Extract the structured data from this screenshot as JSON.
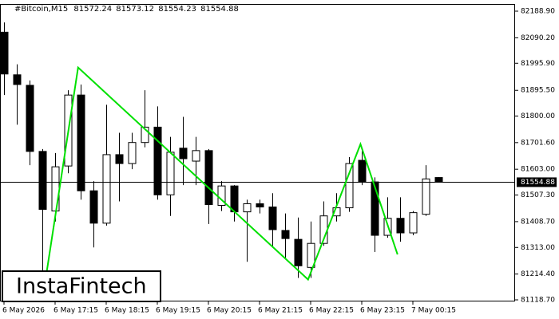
{
  "chart_data": {
    "type": "candlestick",
    "symbol": "#Bitcoin,M15",
    "watermark": "InstaFintech",
    "candles": [
      {
        "open": 82111,
        "high": 82147,
        "low": 81878,
        "close": 81956
      },
      {
        "open": 81953,
        "high": 81992,
        "low": 81768,
        "close": 81917
      },
      {
        "open": 81914,
        "high": 81932,
        "low": 81618,
        "close": 81669
      },
      {
        "open": 81669,
        "high": 81678,
        "low": 81200,
        "close": 81454
      },
      {
        "open": 81448,
        "high": 81663,
        "low": 81409,
        "close": 81612
      },
      {
        "open": 81615,
        "high": 81896,
        "low": 81588,
        "close": 81878
      },
      {
        "open": 81878,
        "high": 81917,
        "low": 81490,
        "close": 81523
      },
      {
        "open": 81523,
        "high": 81559,
        "low": 81313,
        "close": 81403
      },
      {
        "open": 81403,
        "high": 81842,
        "low": 81394,
        "close": 81657
      },
      {
        "open": 81657,
        "high": 81738,
        "low": 81484,
        "close": 81624
      },
      {
        "open": 81624,
        "high": 81738,
        "low": 81603,
        "close": 81702
      },
      {
        "open": 81702,
        "high": 81896,
        "low": 81684,
        "close": 81759
      },
      {
        "open": 81759,
        "high": 81836,
        "low": 81490,
        "close": 81508
      },
      {
        "open": 81508,
        "high": 81723,
        "low": 81430,
        "close": 81666
      },
      {
        "open": 81681,
        "high": 81797,
        "low": 81544,
        "close": 81642
      },
      {
        "open": 81633,
        "high": 81723,
        "low": 81544,
        "close": 81672
      },
      {
        "open": 81672,
        "high": 81678,
        "low": 81400,
        "close": 81472
      },
      {
        "open": 81469,
        "high": 81559,
        "low": 81448,
        "close": 81541
      },
      {
        "open": 81541,
        "high": 81544,
        "low": 81409,
        "close": 81445
      },
      {
        "open": 81445,
        "high": 81490,
        "low": 81260,
        "close": 81475
      },
      {
        "open": 81475,
        "high": 81490,
        "low": 81439,
        "close": 81463
      },
      {
        "open": 81463,
        "high": 81514,
        "low": 81319,
        "close": 81379
      },
      {
        "open": 81376,
        "high": 81439,
        "low": 81275,
        "close": 81346
      },
      {
        "open": 81343,
        "high": 81424,
        "low": 81200,
        "close": 81245
      },
      {
        "open": 81239,
        "high": 81409,
        "low": 81200,
        "close": 81328
      },
      {
        "open": 81328,
        "high": 81484,
        "low": 81319,
        "close": 81430
      },
      {
        "open": 81430,
        "high": 81514,
        "low": 81409,
        "close": 81460
      },
      {
        "open": 81460,
        "high": 81648,
        "low": 81445,
        "close": 81624
      },
      {
        "open": 81636,
        "high": 81678,
        "low": 81544,
        "close": 81556
      },
      {
        "open": 81556,
        "high": 81573,
        "low": 81296,
        "close": 81358
      },
      {
        "open": 81358,
        "high": 81499,
        "low": 81349,
        "close": 81421
      },
      {
        "open": 81421,
        "high": 81499,
        "low": 81334,
        "close": 81367
      },
      {
        "open": 81367,
        "high": 81448,
        "low": 81358,
        "close": 81442
      },
      {
        "open": 81436,
        "high": 81618,
        "low": 81430,
        "close": 81567
      },
      {
        "open": 81572.24,
        "high": 81573.12,
        "low": 81554.23,
        "close": 81554.88
      }
    ],
    "up_color": "#ffffff",
    "down_color": "#000000",
    "current_price": 81554.88,
    "pattern": {
      "color": "#00e000",
      "x": [
        3.3,
        5.8,
        23.8,
        27.9,
        30.8
      ],
      "values": [
        81209,
        81980,
        81194,
        81696,
        81287
      ]
    },
    "xlim": [
      -0.3125,
      40
    ],
    "xticks": [
      {
        "value": 0,
        "label": "6 May 2026"
      },
      {
        "value": 4,
        "label": "6 May 17:15"
      },
      {
        "value": 8,
        "label": "6 May 18:15"
      },
      {
        "value": 12,
        "label": "6 May 19:15"
      },
      {
        "value": 16,
        "label": "6 May 20:15"
      },
      {
        "value": 20,
        "label": "6 May 21:15"
      },
      {
        "value": 24,
        "label": "6 May 22:15"
      },
      {
        "value": 28,
        "label": "6 May 23:15"
      },
      {
        "value": 32,
        "label": "7 May 00:15"
      }
    ],
    "ylim": [
      81112.8,
      82215.5
    ],
    "yticks": [
      {
        "value": 82188.9,
        "label": "82188.90"
      },
      {
        "value": 82090.2,
        "label": "82090.20"
      },
      {
        "value": 81995.9,
        "label": "81995.90"
      },
      {
        "value": 81895.5,
        "label": "81895.50"
      },
      {
        "value": 81800,
        "label": "81800.00"
      },
      {
        "value": 81701.6,
        "label": "81701.60"
      },
      {
        "value": 81603,
        "label": "81603.00"
      },
      {
        "value": 81507.3,
        "label": "81507.30"
      },
      {
        "value": 81408.7,
        "label": "81408.70"
      },
      {
        "value": 81313,
        "label": "81313.00"
      },
      {
        "value": 81214.4,
        "label": "81214.40"
      },
      {
        "value": 81118.7,
        "label": "81118.70"
      }
    ]
  }
}
